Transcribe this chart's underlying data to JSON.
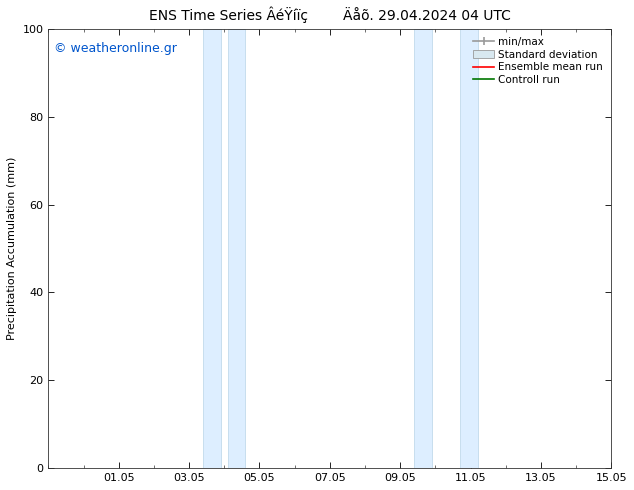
{
  "title": "ENS Time Series ÂéŸíïç        Äåõ. 29.04.2024 04 UTC",
  "ylabel": "Precipitation Accumulation (mm)",
  "watermark": "© weatheronline.gr",
  "watermark_color": "#0055cc",
  "ylim": [
    0,
    100
  ],
  "yticks": [
    0,
    20,
    40,
    60,
    80,
    100
  ],
  "xtick_labels": [
    "01.05",
    "03.05",
    "05.05",
    "07.05",
    "09.05",
    "11.05",
    "13.05",
    "15.05"
  ],
  "xlim": [
    0.0,
    16.0
  ],
  "shade_bands": [
    {
      "x_start": 4.4,
      "x_end": 4.9
    },
    {
      "x_start": 5.1,
      "x_end": 5.6
    },
    {
      "x_start": 10.4,
      "x_end": 10.9
    },
    {
      "x_start": 11.7,
      "x_end": 12.2
    }
  ],
  "shade_color": "#ddeeff",
  "shade_edge_color": "#b8d4e8",
  "background_color": "#ffffff",
  "plot_bg_color": "#ffffff",
  "legend_items": [
    {
      "label": "min/max",
      "color": "#999999",
      "style": "minmax"
    },
    {
      "label": "Standard deviation",
      "color": "#cccccc",
      "style": "stddev"
    },
    {
      "label": "Ensemble mean run",
      "color": "#ff0000",
      "style": "line"
    },
    {
      "label": "Controll run",
      "color": "#007700",
      "style": "line"
    }
  ],
  "title_fontsize": 10,
  "tick_fontsize": 8,
  "ylabel_fontsize": 8,
  "legend_fontsize": 7.5,
  "watermark_fontsize": 9
}
